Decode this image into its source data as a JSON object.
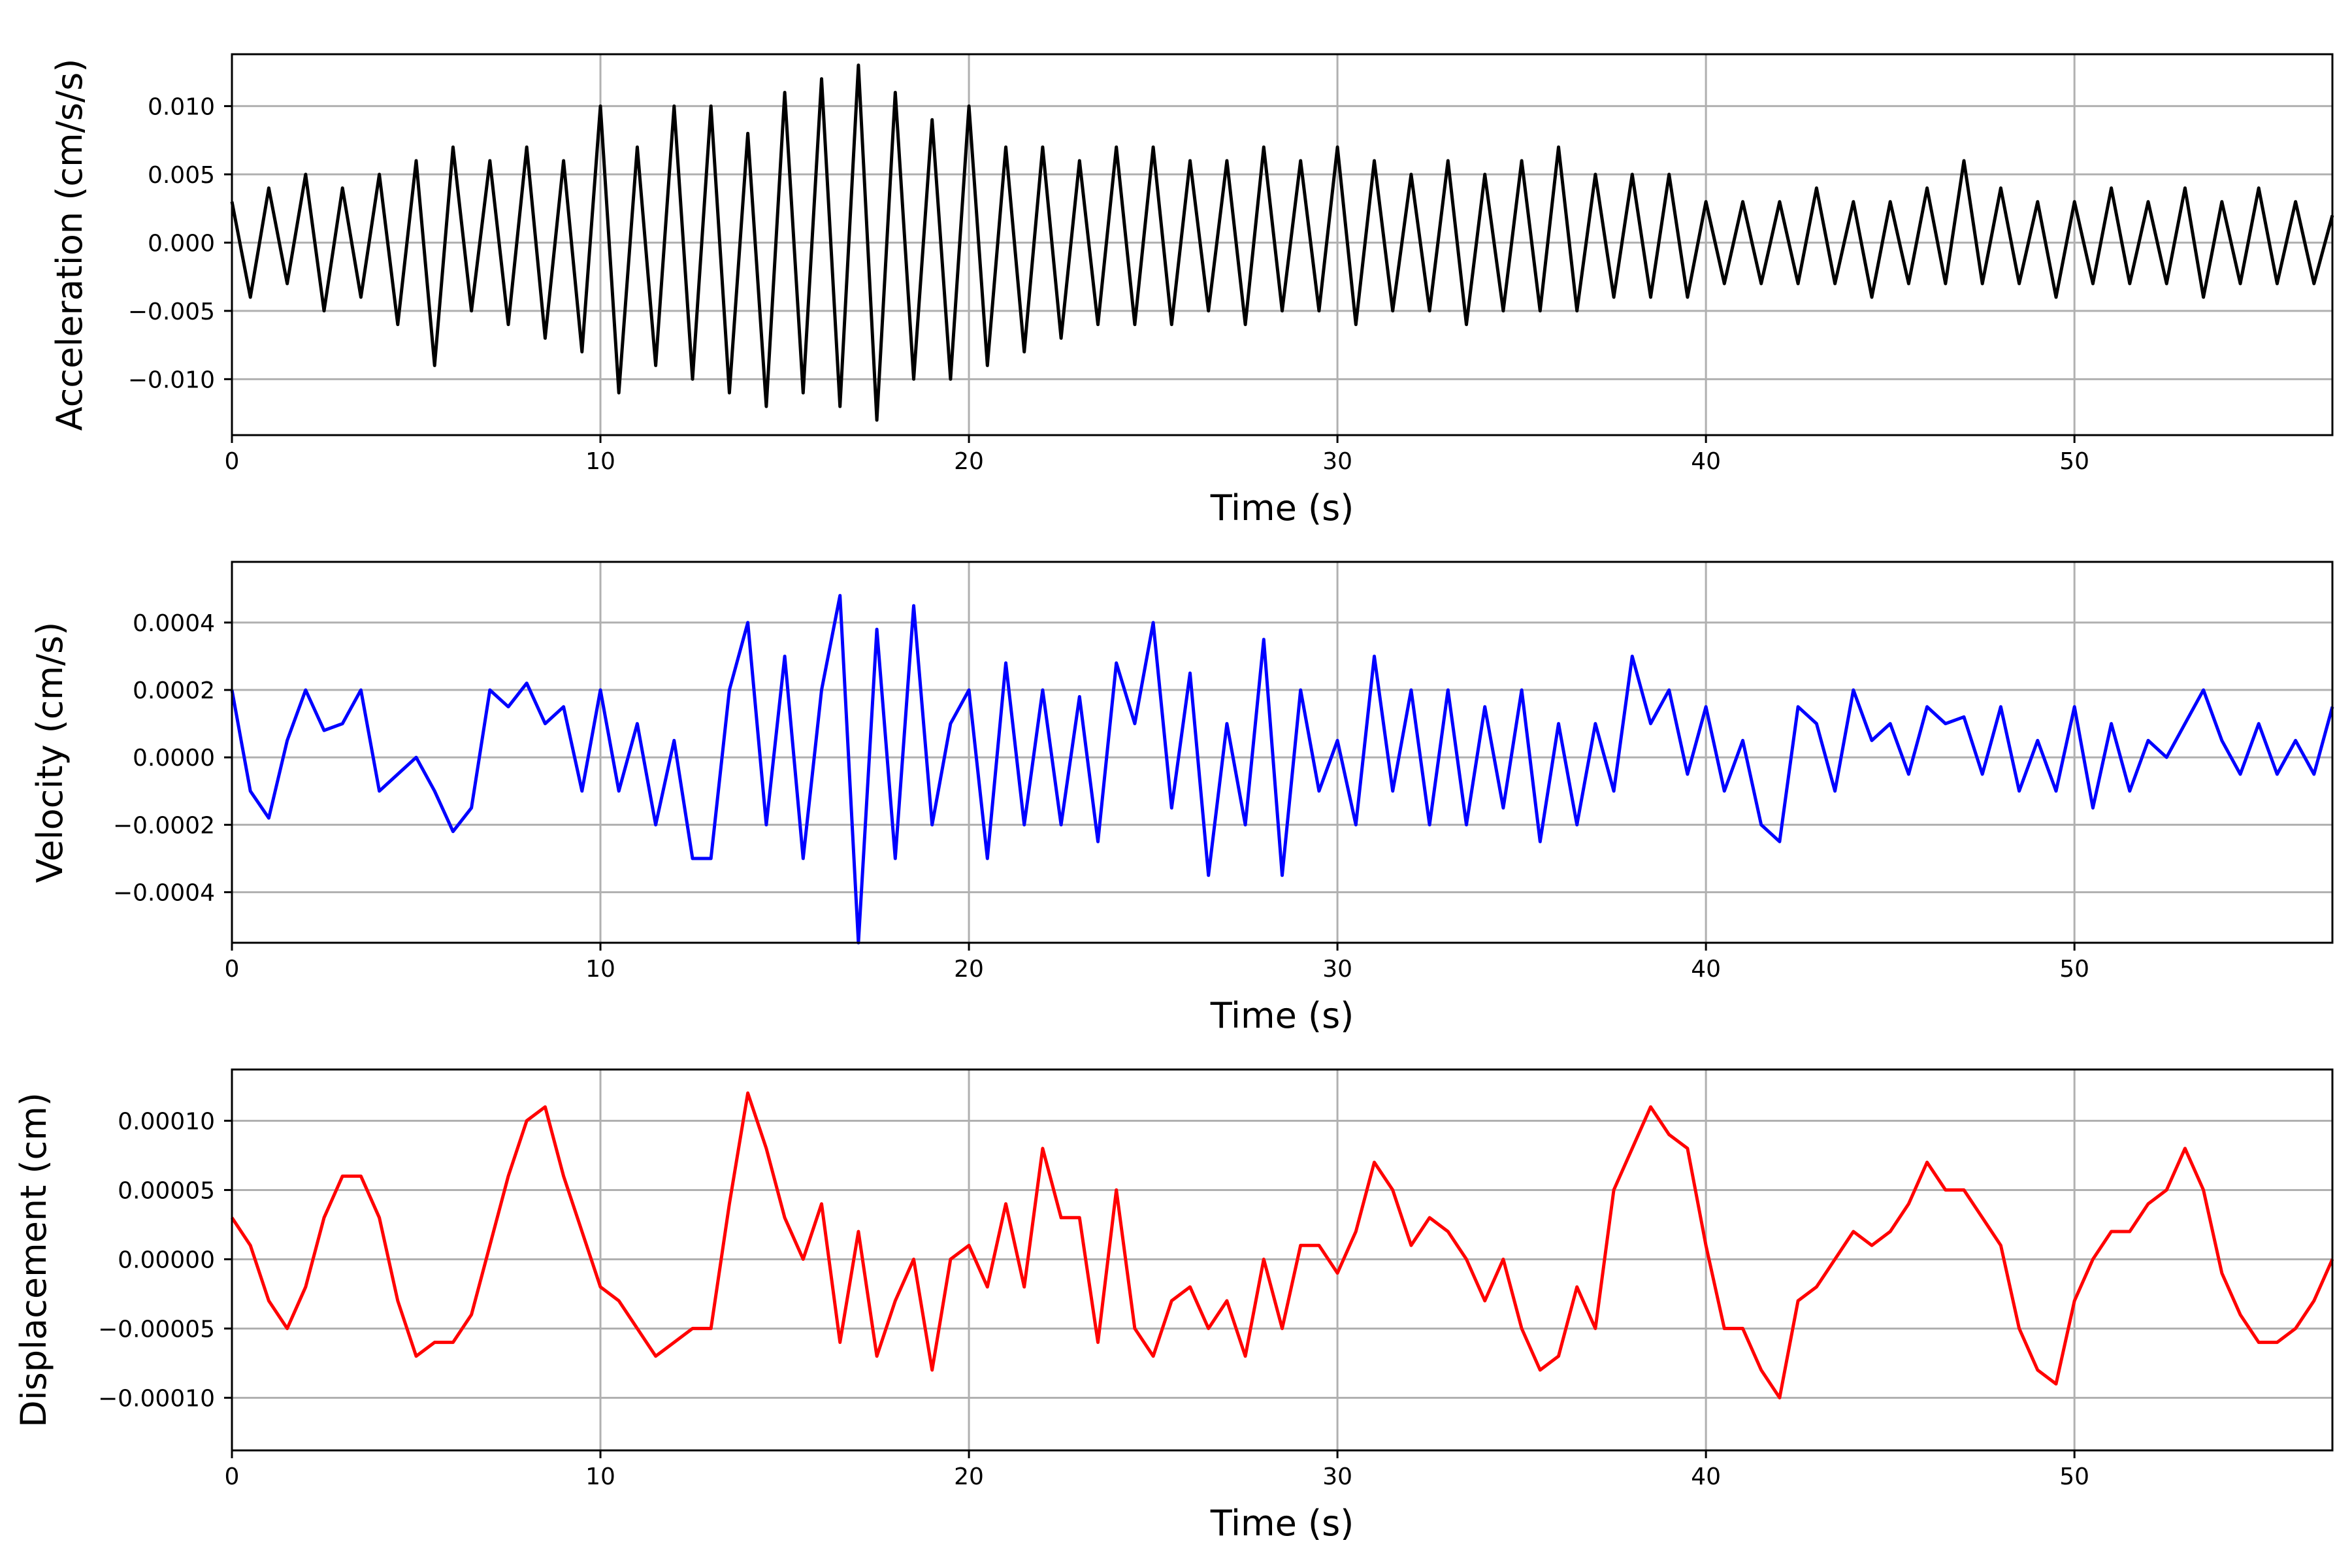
{
  "chart_data": [
    {
      "type": "line",
      "xlabel": "Time (s)",
      "ylabel": "Acceleration (cm/s/s)",
      "xlim": [
        0,
        57
      ],
      "ylim": [
        -0.0141,
        0.0138
      ],
      "xticks": [
        0,
        10,
        20,
        30,
        40,
        50
      ],
      "xtick_labels": [
        "0",
        "10",
        "20",
        "30",
        "40",
        "50"
      ],
      "yticks": [
        -0.01,
        -0.005,
        0,
        0.005,
        0.01
      ],
      "ytick_labels": [
        "−0.010",
        "−0.005",
        "0.000",
        "0.005",
        "0.010"
      ],
      "grid": true,
      "color": "#000000",
      "series": [
        {
          "x": [
            0,
            0.5,
            1,
            1.5,
            2,
            2.5,
            3,
            3.5,
            4,
            4.5,
            5,
            5.5,
            6,
            6.5,
            7,
            7.5,
            8,
            8.5,
            9,
            9.5,
            10,
            10.5,
            11,
            11.5,
            12,
            12.5,
            13,
            13.5,
            14,
            14.5,
            15,
            15.5,
            16,
            16.5,
            17,
            17.5,
            18,
            18.5,
            19,
            19.5,
            20,
            20.5,
            21,
            21.5,
            22,
            22.5,
            23,
            23.5,
            24,
            24.5,
            25,
            25.5,
            26,
            26.5,
            27,
            27.5,
            28,
            28.5,
            29,
            29.5,
            30,
            30.5,
            31,
            31.5,
            32,
            32.5,
            33,
            33.5,
            34,
            34.5,
            35,
            35.5,
            36,
            36.5,
            37,
            37.5,
            38,
            38.5,
            39,
            39.5,
            40,
            40.5,
            41,
            41.5,
            42,
            42.5,
            43,
            43.5,
            44,
            44.5,
            45,
            45.5,
            46,
            46.5,
            47,
            47.5,
            48,
            48.5,
            49,
            49.5,
            50,
            50.5,
            51,
            51.5,
            52,
            52.5,
            53,
            53.5,
            54,
            54.5,
            55,
            55.5,
            56,
            56.5,
            57
          ],
          "y": [
            0.003,
            -0.004,
            0.004,
            -0.003,
            0.005,
            -0.005,
            0.004,
            -0.004,
            0.005,
            -0.006,
            0.006,
            -0.009,
            0.007,
            -0.005,
            0.006,
            -0.006,
            0.007,
            -0.007,
            0.006,
            -0.008,
            0.01,
            -0.011,
            0.007,
            -0.009,
            0.01,
            -0.01,
            0.01,
            -0.011,
            0.008,
            -0.012,
            0.011,
            -0.011,
            0.012,
            -0.012,
            0.013,
            -0.013,
            0.011,
            -0.01,
            0.009,
            -0.01,
            0.01,
            -0.009,
            0.007,
            -0.008,
            0.007,
            -0.007,
            0.006,
            -0.006,
            0.007,
            -0.006,
            0.007,
            -0.006,
            0.006,
            -0.005,
            0.006,
            -0.006,
            0.007,
            -0.005,
            0.006,
            -0.005,
            0.007,
            -0.006,
            0.006,
            -0.005,
            0.005,
            -0.005,
            0.006,
            -0.006,
            0.005,
            -0.005,
            0.006,
            -0.005,
            0.007,
            -0.005,
            0.005,
            -0.004,
            0.005,
            -0.004,
            0.005,
            -0.004,
            0.003,
            -0.003,
            0.003,
            -0.003,
            0.003,
            -0.003,
            0.004,
            -0.003,
            0.003,
            -0.004,
            0.003,
            -0.003,
            0.004,
            -0.003,
            0.006,
            -0.003,
            0.004,
            -0.003,
            0.003,
            -0.004,
            0.003,
            -0.003,
            0.004,
            -0.003,
            0.003,
            -0.003,
            0.004,
            -0.004,
            0.003,
            -0.003,
            0.004,
            -0.003,
            0.003,
            -0.003,
            0.002
          ]
        }
      ]
    },
    {
      "type": "line",
      "xlabel": "Time (s)",
      "ylabel": "Velocity (cm/s)",
      "xlim": [
        0,
        57
      ],
      "ylim": [
        -0.00055,
        0.00058
      ],
      "xticks": [
        0,
        10,
        20,
        30,
        40,
        50
      ],
      "xtick_labels": [
        "0",
        "10",
        "20",
        "30",
        "40",
        "50"
      ],
      "yticks": [
        -0.0004,
        -0.0002,
        0,
        0.0002,
        0.0004
      ],
      "ytick_labels": [
        "−0.0004",
        "−0.0002",
        "0.0000",
        "0.0002",
        "0.0004"
      ],
      "grid": true,
      "color": "#0000ff",
      "series": [
        {
          "x": [
            0,
            0.5,
            1,
            1.5,
            2,
            2.5,
            3,
            3.5,
            4,
            4.5,
            5,
            5.5,
            6,
            6.5,
            7,
            7.5,
            8,
            8.5,
            9,
            9.5,
            10,
            10.5,
            11,
            11.5,
            12,
            12.5,
            13,
            13.5,
            14,
            14.5,
            15,
            15.5,
            16,
            16.5,
            17,
            17.5,
            18,
            18.5,
            19,
            19.5,
            20,
            20.5,
            21,
            21.5,
            22,
            22.5,
            23,
            23.5,
            24,
            24.5,
            25,
            25.5,
            26,
            26.5,
            27,
            27.5,
            28,
            28.5,
            29,
            29.5,
            30,
            30.5,
            31,
            31.5,
            32,
            32.5,
            33,
            33.5,
            34,
            34.5,
            35,
            35.5,
            36,
            36.5,
            37,
            37.5,
            38,
            38.5,
            39,
            39.5,
            40,
            40.5,
            41,
            41.5,
            42,
            42.5,
            43,
            43.5,
            44,
            44.5,
            45,
            45.5,
            46,
            46.5,
            47,
            47.5,
            48,
            48.5,
            49,
            49.5,
            50,
            50.5,
            51,
            51.5,
            52,
            52.5,
            53,
            53.5,
            54,
            54.5,
            55,
            55.5,
            56,
            56.5,
            57
          ],
          "y": [
            0.0002,
            -0.0001,
            -0.00018,
            5e-05,
            0.0002,
            8e-05,
            0.0001,
            0.0002,
            -0.0001,
            -5e-05,
            0,
            -0.0001,
            -0.00022,
            -0.00015,
            0.0002,
            0.00015,
            0.00022,
            0.0001,
            0.00015,
            -0.0001,
            0.0002,
            -0.0001,
            0.0001,
            -0.0002,
            5e-05,
            -0.0003,
            -0.0003,
            0.0002,
            0.0004,
            -0.0002,
            0.0003,
            -0.0003,
            0.0002,
            0.00048,
            -0.00055,
            0.00038,
            -0.0003,
            0.00045,
            -0.0002,
            0.0001,
            0.0002,
            -0.0003,
            0.00028,
            -0.0002,
            0.0002,
            -0.0002,
            0.00018,
            -0.00025,
            0.00028,
            0.0001,
            0.0004,
            -0.00015,
            0.00025,
            -0.00035,
            0.0001,
            -0.0002,
            0.00035,
            -0.00035,
            0.0002,
            -0.0001,
            5e-05,
            -0.0002,
            0.0003,
            -0.0001,
            0.0002,
            -0.0002,
            0.0002,
            -0.0002,
            0.00015,
            -0.00015,
            0.0002,
            -0.00025,
            0.0001,
            -0.0002,
            0.0001,
            -0.0001,
            0.0003,
            0.0001,
            0.0002,
            -5e-05,
            0.00015,
            -0.0001,
            5e-05,
            -0.0002,
            -0.00025,
            0.00015,
            0.0001,
            -0.0001,
            0.0002,
            5e-05,
            0.0001,
            -5e-05,
            0.00015,
            0.0001,
            0.00012,
            -5e-05,
            0.00015,
            -0.0001,
            5e-05,
            -0.0001,
            0.00015,
            -0.00015,
            0.0001,
            -0.0001,
            5e-05,
            0,
            0.0001,
            0.0002,
            5e-05,
            -5e-05,
            0.0001,
            -5e-05,
            5e-05,
            -5e-05,
            0.00015
          ]
        }
      ]
    },
    {
      "type": "line",
      "xlabel": "Time (s)",
      "ylabel": "Displacement (cm)",
      "xlim": [
        0,
        57
      ],
      "ylim": [
        -0.000138,
        0.000137
      ],
      "xticks": [
        0,
        10,
        20,
        30,
        40,
        50
      ],
      "xtick_labels": [
        "0",
        "10",
        "20",
        "30",
        "40",
        "50"
      ],
      "yticks": [
        -0.0001,
        -5e-05,
        0,
        5e-05,
        0.0001
      ],
      "ytick_labels": [
        "−0.00010",
        "−0.00005",
        "0.00000",
        "0.00005",
        "0.00010"
      ],
      "grid": true,
      "color": "#ff0000",
      "series": [
        {
          "x": [
            0,
            0.5,
            1,
            1.5,
            2,
            2.5,
            3,
            3.5,
            4,
            4.5,
            5,
            5.5,
            6,
            6.5,
            7,
            7.5,
            8,
            8.5,
            9,
            9.5,
            10,
            10.5,
            11,
            11.5,
            12,
            12.5,
            13,
            13.5,
            14,
            14.5,
            15,
            15.5,
            16,
            16.5,
            17,
            17.5,
            18,
            18.5,
            19,
            19.5,
            20,
            20.5,
            21,
            21.5,
            22,
            22.5,
            23,
            23.5,
            24,
            24.5,
            25,
            25.5,
            26,
            26.5,
            27,
            27.5,
            28,
            28.5,
            29,
            29.5,
            30,
            30.5,
            31,
            31.5,
            32,
            32.5,
            33,
            33.5,
            34,
            34.5,
            35,
            35.5,
            36,
            36.5,
            37,
            37.5,
            38,
            38.5,
            39,
            39.5,
            40,
            40.5,
            41,
            41.5,
            42,
            42.5,
            43,
            43.5,
            44,
            44.5,
            45,
            45.5,
            46,
            46.5,
            47,
            47.5,
            48,
            48.5,
            49,
            49.5,
            50,
            50.5,
            51,
            51.5,
            52,
            52.5,
            53,
            53.5,
            54,
            54.5,
            55,
            55.5,
            56,
            56.5,
            57
          ],
          "y": [
            3e-05,
            1e-05,
            -3e-05,
            -5e-05,
            -2e-05,
            3e-05,
            6e-05,
            6e-05,
            3e-05,
            -3e-05,
            -7e-05,
            -6e-05,
            -6e-05,
            -4e-05,
            1e-05,
            6e-05,
            0.0001,
            0.00011,
            6e-05,
            2e-05,
            -2e-05,
            -3e-05,
            -5e-05,
            -7e-05,
            -6e-05,
            -5e-05,
            -5e-05,
            4e-05,
            0.00012,
            8e-05,
            3e-05,
            0.0,
            4e-05,
            -6e-05,
            2e-05,
            -7e-05,
            -3e-05,
            0.0,
            -8e-05,
            0.0,
            1e-05,
            -2e-05,
            4e-05,
            -2e-05,
            8e-05,
            3e-05,
            3e-05,
            -6e-05,
            5e-05,
            -5e-05,
            -7e-05,
            -3e-05,
            -2e-05,
            -5e-05,
            -3e-05,
            -7e-05,
            0.0,
            -5e-05,
            1e-05,
            1e-05,
            -1e-05,
            2e-05,
            7e-05,
            5e-05,
            1e-05,
            3e-05,
            2e-05,
            0.0,
            -3e-05,
            0.0,
            -5e-05,
            -8e-05,
            -7e-05,
            -2e-05,
            -5e-05,
            5e-05,
            8e-05,
            0.00011,
            9e-05,
            8e-05,
            1e-05,
            -5e-05,
            -5e-05,
            -8e-05,
            -0.0001,
            -3e-05,
            -2e-05,
            0.0,
            2e-05,
            1e-05,
            2e-05,
            4e-05,
            7e-05,
            5e-05,
            5e-05,
            3e-05,
            1e-05,
            -5e-05,
            -8e-05,
            -9e-05,
            -3e-05,
            0.0,
            2e-05,
            2e-05,
            4e-05,
            5e-05,
            8e-05,
            5e-05,
            -1e-05,
            -4e-05,
            -6e-05,
            -6e-05,
            -5e-05,
            -3e-05,
            0.0
          ]
        }
      ]
    }
  ]
}
